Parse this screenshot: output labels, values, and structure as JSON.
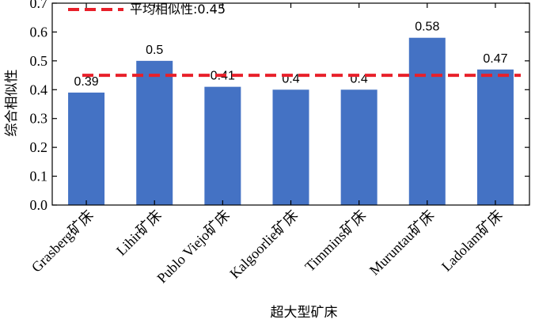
{
  "chart_data": {
    "type": "bar",
    "categories": [
      "Grasberg矿床",
      "Lihir矿床",
      "Publo Viejo矿床",
      "Kalgoorlie矿床",
      "Timmins矿床",
      "Muruntau矿床",
      "Ladolam矿床"
    ],
    "values": [
      0.39,
      0.5,
      0.41,
      0.4,
      0.4,
      0.58,
      0.47
    ],
    "data_labels": [
      "0.39",
      "0.5",
      "0.41",
      "0.4",
      "0.4",
      "0.58",
      "0.47"
    ],
    "title": "",
    "xlabel": "超大型矿床",
    "ylabel": "综合相似性",
    "ylim": [
      0,
      0.7
    ],
    "yticks": [
      0.0,
      0.1,
      0.2,
      0.3,
      0.4,
      0.5,
      0.6,
      0.7
    ],
    "ytick_labels": [
      "0.0",
      "0.1",
      "0.2",
      "0.3",
      "0.4",
      "0.5",
      "0.6",
      "0.7"
    ],
    "reference_line": {
      "value": 0.45,
      "label": "平均相似性:0.45",
      "color": "#e8202a",
      "style": "dashed"
    },
    "legend_position": "top-left",
    "grid": false,
    "bar_color": "#4472c4"
  }
}
